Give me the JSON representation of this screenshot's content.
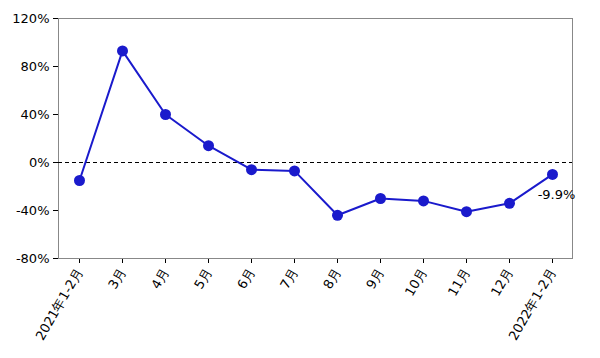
{
  "chart_data": {
    "type": "line",
    "categories": [
      "2021年1-2月",
      "3月",
      "4月",
      "5月",
      "6月",
      "7月",
      "8月",
      "9月",
      "10月",
      "11月",
      "12月",
      "2022年1-2月"
    ],
    "values": [
      -15,
      93,
      40,
      14,
      -6,
      -7,
      -44,
      -30,
      -32,
      -41,
      -34,
      -9.9
    ],
    "value_labels": [
      null,
      null,
      null,
      null,
      null,
      null,
      null,
      null,
      null,
      null,
      null,
      "-9.9%"
    ],
    "data_labels": true,
    "color": "#1a1acc",
    "marker": "circle",
    "ylim": [
      -80,
      120
    ],
    "yticks": [
      {
        "value": -80,
        "label": "-80%"
      },
      {
        "value": -40,
        "label": "-40%"
      },
      {
        "value": 0,
        "label": "0%"
      },
      {
        "value": 40,
        "label": "40%"
      },
      {
        "value": 80,
        "label": "80%"
      },
      {
        "value": 120,
        "label": "120%"
      }
    ],
    "grid": false
  }
}
